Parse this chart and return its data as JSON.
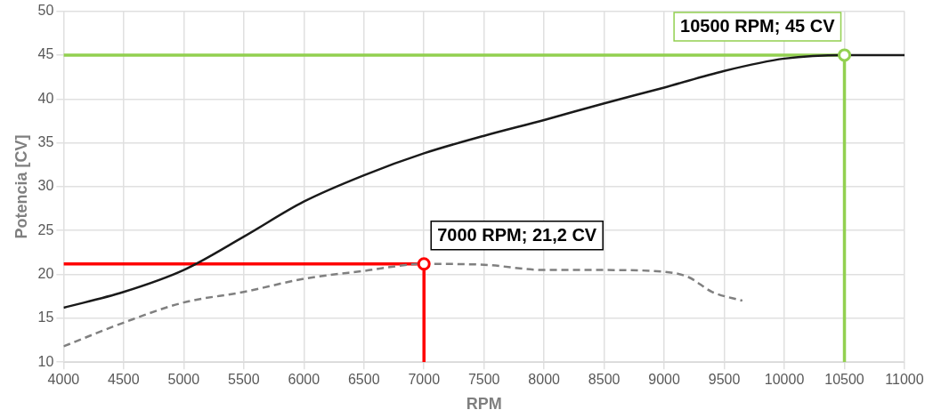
{
  "chart_data": {
    "type": "line",
    "xlabel": "RPM",
    "ylabel": "Potencia [CV]",
    "xlim": [
      4000,
      11000
    ],
    "xticks": [
      4000,
      4500,
      5000,
      5500,
      6000,
      6500,
      7000,
      7500,
      8000,
      8500,
      9000,
      9500,
      10000,
      10500,
      11000
    ],
    "ylim": [
      10,
      50
    ],
    "yticks": [
      10,
      15,
      20,
      25,
      30,
      35,
      40,
      45,
      50
    ],
    "grid": true,
    "legend": false,
    "marker": "none",
    "series": [
      {
        "color": "#1a1a1a",
        "line_style": "solid",
        "x": [
          4000,
          4500,
          5000,
          5500,
          6000,
          6500,
          7000,
          7500,
          8000,
          8500,
          9000,
          9500,
          10000,
          10500,
          11000
        ],
        "values": [
          16.2,
          18.0,
          20.5,
          24.3,
          28.3,
          31.3,
          33.8,
          35.8,
          37.6,
          39.5,
          41.3,
          43.2,
          44.6,
          45,
          45
        ]
      },
      {
        "color": "#808080",
        "line_style": "dashed",
        "x": [
          4000,
          4500,
          5000,
          5500,
          6000,
          6500,
          7000,
          7500,
          8000,
          8500,
          9000,
          9200,
          9400,
          9650
        ],
        "values": [
          11.8,
          14.5,
          16.8,
          18.0,
          19.5,
          20.4,
          21.2,
          21.1,
          20.5,
          20.5,
          20.3,
          19.7,
          18.0,
          17.0
        ]
      },
      {
        "color": "#ff0000",
        "line_style": "solid",
        "x": [
          4000,
          7000,
          7000
        ],
        "values": [
          21.2,
          21.2,
          10
        ]
      },
      {
        "color": "#92d050",
        "line_style": "solid",
        "x": [
          4000,
          10500,
          10500
        ],
        "values": [
          45,
          45,
          10
        ]
      }
    ],
    "annotations": [
      {
        "text": "7000 RPM; 21,2 CV",
        "x": 7000,
        "y": 21.2
      },
      {
        "text": "10500 RPM; 45 CV",
        "x": 10500,
        "y": 45
      }
    ]
  }
}
